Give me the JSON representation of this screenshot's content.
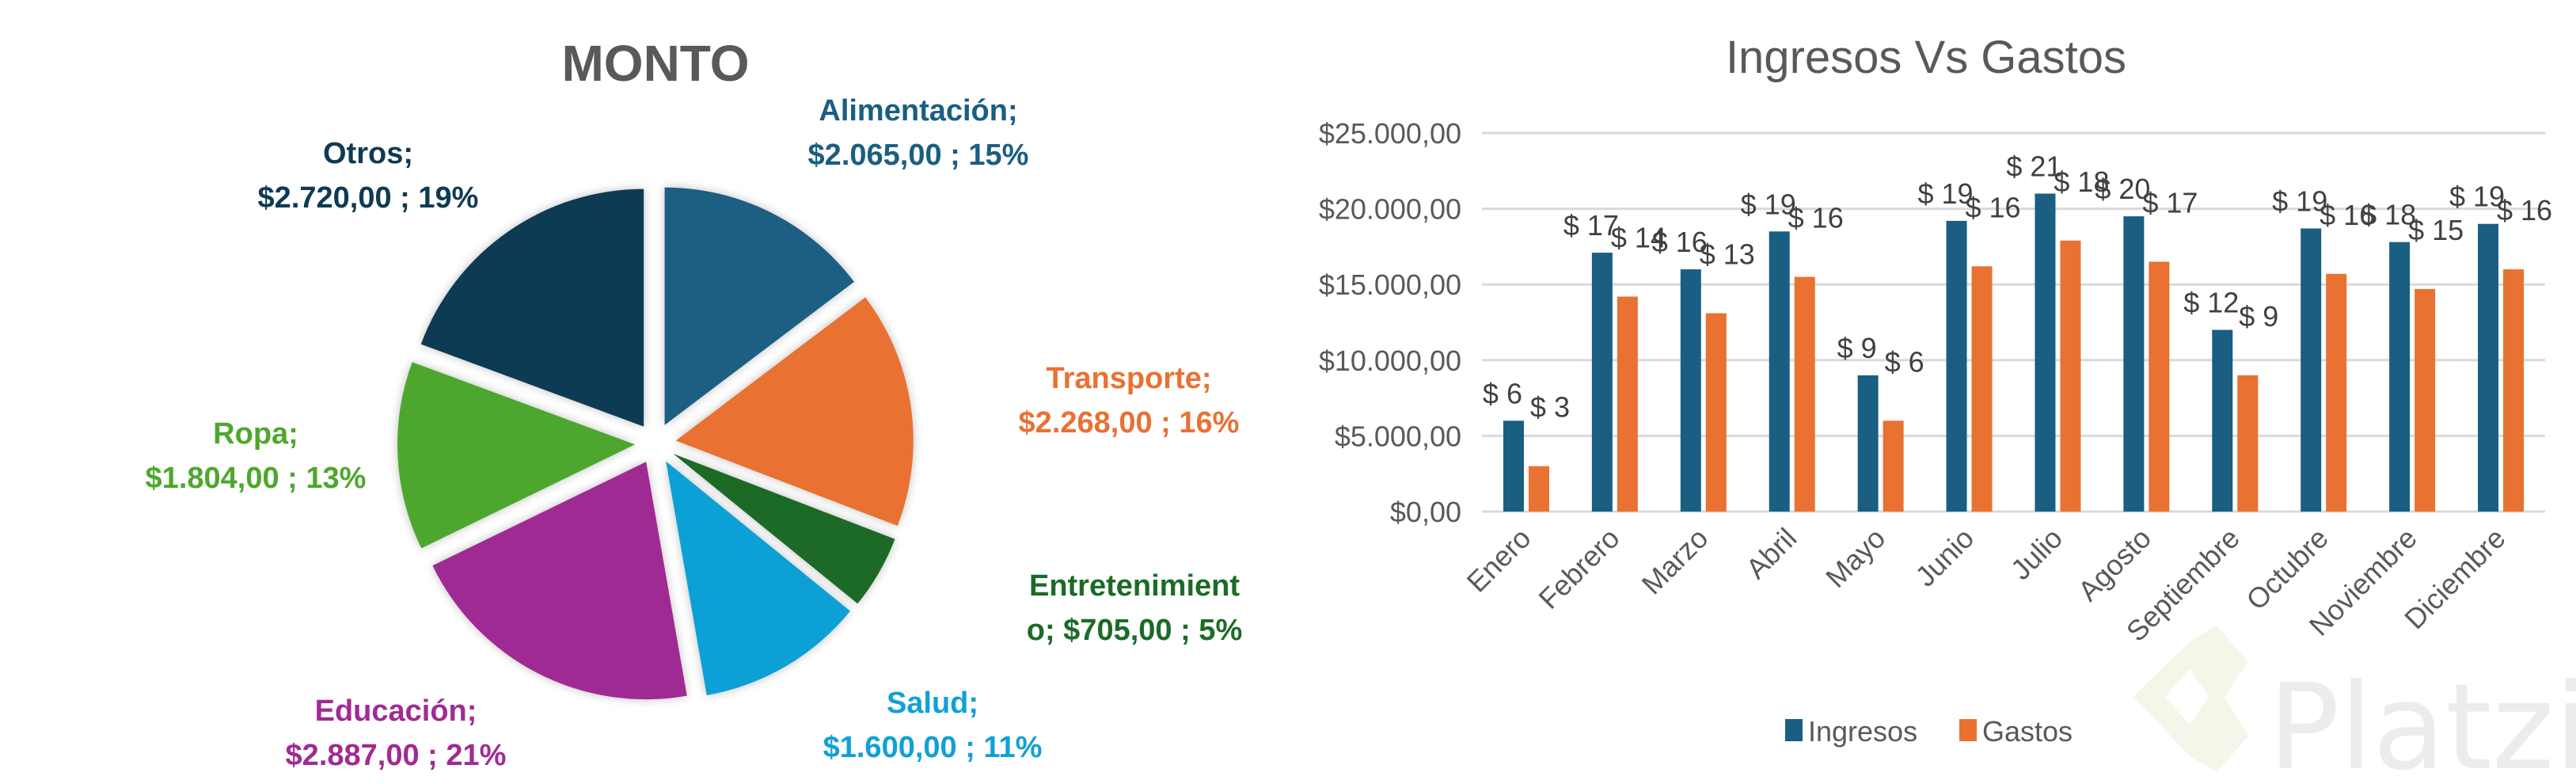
{
  "chart_data": [
    {
      "type": "pie",
      "title": "MONTO",
      "exploded": true,
      "start": "top",
      "direction": "clockwise",
      "slices": [
        {
          "label": "Alimentación",
          "value": 2065.0,
          "value_text": "$2.065,00",
          "percent": 15,
          "color": "#1a5e82",
          "label_lines": [
            "Alimentación;",
            "$2.065,00 ; 15%"
          ]
        },
        {
          "label": "Transporte",
          "value": 2268.0,
          "value_text": "$2.268,00",
          "percent": 16,
          "color": "#e97132",
          "label_lines": [
            "Transporte;",
            "$2.268,00 ; 16%"
          ]
        },
        {
          "label": "Entretenimiento",
          "value": 705.0,
          "value_text": "$705,00",
          "percent": 5,
          "color": "#1b6b27",
          "label_lines": [
            "Entretenimient",
            "o;  $705,00 ; 5%"
          ]
        },
        {
          "label": "Salud",
          "value": 1600.0,
          "value_text": "$1.600,00",
          "percent": 11,
          "color": "#11a0d6",
          "label_lines": [
            "Salud;",
            "$1.600,00 ; 11%"
          ]
        },
        {
          "label": "Educación",
          "value": 2887.0,
          "value_text": "$2.887,00",
          "percent": 21,
          "color": "#a02b93",
          "label_lines": [
            "Educación;",
            "$2.887,00 ; 21%"
          ]
        },
        {
          "label": "Ropa",
          "value": 1804.0,
          "value_text": "$1.804,00",
          "percent": 13,
          "color": "#4ea72e",
          "label_lines": [
            "Ropa;",
            "$1.804,00 ; 13%"
          ]
        },
        {
          "label": "Otros",
          "value": 2720.0,
          "value_text": "$2.720,00",
          "percent": 19,
          "color": "#0f3a52",
          "label_lines": [
            "Otros;",
            "$2.720,00 ; 19%"
          ]
        }
      ]
    },
    {
      "type": "bar",
      "title": "Ingresos Vs Gastos",
      "xlabel": "",
      "ylabel": "",
      "ylim": [
        0,
        25000
      ],
      "yticks": [
        0,
        5000,
        10000,
        15000,
        20000,
        25000
      ],
      "ytick_labels": [
        "$0,00",
        "$5.000,00",
        "$10.000,00",
        "$15.000,00",
        "$20.000,00",
        "$25.000,00"
      ],
      "grid": true,
      "legend": "bottom",
      "categories": [
        "Enero",
        "Febrero",
        "Marzo",
        "Abril",
        "Mayo",
        "Junio",
        "Julio",
        "Agosto",
        "Septiembre",
        "Octubre",
        "Noviembre",
        "Diciembre"
      ],
      "series": [
        {
          "name": "Ingresos",
          "color": "#1a5e82",
          "values": [
            6000,
            17100,
            16000,
            18500,
            9000,
            19200,
            21000,
            19500,
            12000,
            18700,
            17800,
            19000
          ],
          "data_labels": [
            "$ 6",
            "$ 17",
            "$ 16",
            "$ 19",
            "$ 9",
            "$ 19",
            "$ 21",
            "$ 20",
            "$ 12",
            "$ 19",
            "$ 18",
            "$ 19"
          ]
        },
        {
          "name": "Gastos",
          "color": "#e97132",
          "values": [
            3000,
            14200,
            13100,
            15500,
            6000,
            16200,
            17900,
            16500,
            9000,
            15700,
            14700,
            16000
          ],
          "data_labels": [
            "$ 3",
            "$ 14",
            "$ 13",
            "$ 16",
            "$ 6",
            "$ 16",
            "$ 18",
            "$ 17",
            "$ 9",
            "$ 16",
            "$ 15",
            "$ 16"
          ]
        }
      ]
    }
  ],
  "watermark": {
    "text": "Platzi",
    "icon": "platzi-logo-icon"
  }
}
